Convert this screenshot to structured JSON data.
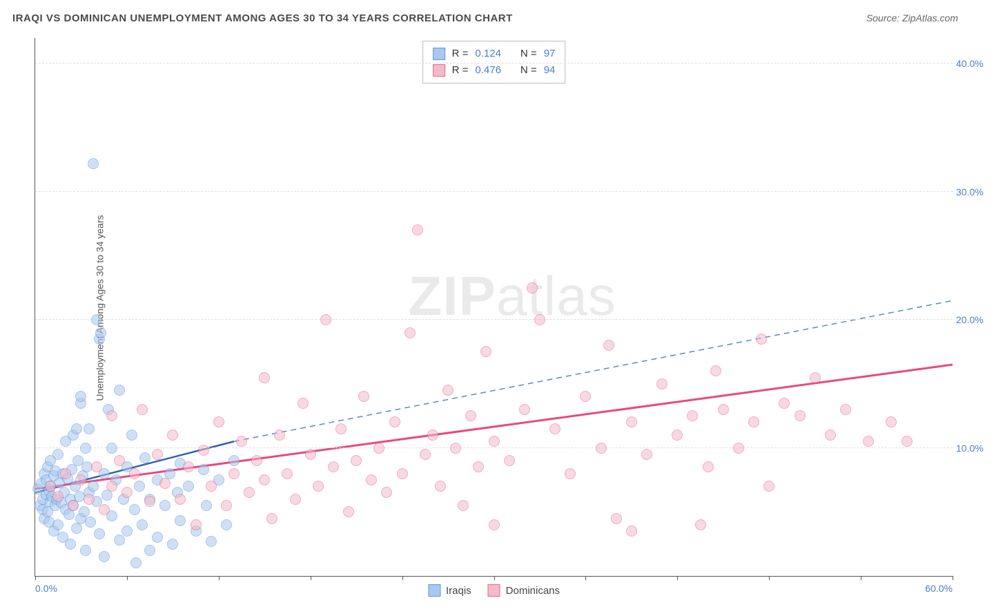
{
  "header": {
    "title": "IRAQI VS DOMINICAN UNEMPLOYMENT AMONG AGES 30 TO 34 YEARS CORRELATION CHART",
    "source_prefix": "Source: ",
    "source_name": "ZipAtlas.com"
  },
  "watermark": {
    "part1": "ZIP",
    "part2": "atlas"
  },
  "chart": {
    "type": "scatter",
    "y_axis_title": "Unemployment Among Ages 30 to 34 years",
    "background_color": "#ffffff",
    "grid_color": "#dddddd",
    "axis_color": "#555555",
    "tick_label_color": "#4a7bd0",
    "tick_fontsize": 14,
    "xlim": [
      0,
      60
    ],
    "ylim": [
      0,
      42
    ],
    "x_ticks": [
      0,
      6,
      12,
      18,
      24,
      30,
      36,
      42,
      48,
      54,
      60
    ],
    "x_tick_labels_shown": {
      "0": "0.0%",
      "60": "60.0%"
    },
    "y_gridlines": [
      10,
      20,
      30,
      40
    ],
    "y_tick_labels": {
      "10": "10.0%",
      "20": "20.0%",
      "30": "30.0%",
      "40": "40.0%"
    },
    "marker_radius": 8,
    "marker_opacity": 0.55,
    "series": [
      {
        "id": "iraqis",
        "label": "Iraqis",
        "color_fill": "#a9c8ef",
        "color_stroke": "#5f96d9",
        "R": "0.124",
        "N": "97",
        "trend": {
          "x1": 0,
          "y1": 6.5,
          "x2": 13,
          "y2": 10.5,
          "solid_stroke": "#2f5fb0",
          "dash_x2": 60,
          "dash_y2": 21.5,
          "dash_stroke": "#5a87c8",
          "stroke_width": 2.5,
          "dash_pattern": "8,6"
        },
        "points": [
          [
            0.2,
            6.8
          ],
          [
            0.3,
            5.5
          ],
          [
            0.4,
            7.2
          ],
          [
            0.5,
            6.0
          ],
          [
            0.5,
            5.2
          ],
          [
            0.6,
            8.0
          ],
          [
            0.6,
            4.5
          ],
          [
            0.7,
            7.5
          ],
          [
            0.7,
            6.3
          ],
          [
            0.8,
            5.0
          ],
          [
            0.8,
            8.5
          ],
          [
            0.9,
            6.7
          ],
          [
            0.9,
            4.2
          ],
          [
            1.0,
            7.0
          ],
          [
            1.0,
            5.8
          ],
          [
            1.0,
            9.0
          ],
          [
            1.1,
            6.2
          ],
          [
            1.2,
            3.5
          ],
          [
            1.2,
            7.8
          ],
          [
            1.3,
            5.5
          ],
          [
            1.3,
            8.2
          ],
          [
            1.4,
            6.0
          ],
          [
            1.5,
            4.0
          ],
          [
            1.5,
            9.5
          ],
          [
            1.6,
            7.3
          ],
          [
            1.7,
            5.7
          ],
          [
            1.8,
            3.0
          ],
          [
            1.8,
            8.0
          ],
          [
            1.9,
            6.5
          ],
          [
            2.0,
            5.2
          ],
          [
            2.0,
            10.5
          ],
          [
            2.1,
            7.6
          ],
          [
            2.2,
            4.8
          ],
          [
            2.3,
            6.0
          ],
          [
            2.3,
            2.5
          ],
          [
            2.4,
            8.3
          ],
          [
            2.5,
            5.5
          ],
          [
            2.5,
            11.0
          ],
          [
            2.6,
            7.0
          ],
          [
            2.7,
            3.7
          ],
          [
            2.8,
            9.0
          ],
          [
            2.9,
            6.2
          ],
          [
            3.0,
            4.5
          ],
          [
            3.0,
            13.5
          ],
          [
            3.0,
            14.0
          ],
          [
            3.1,
            7.8
          ],
          [
            3.2,
            5.0
          ],
          [
            3.3,
            2.0
          ],
          [
            3.4,
            8.5
          ],
          [
            3.5,
            6.5
          ],
          [
            3.5,
            11.5
          ],
          [
            3.6,
            4.2
          ],
          [
            3.8,
            7.0
          ],
          [
            3.8,
            32.2
          ],
          [
            4.0,
            5.8
          ],
          [
            4.0,
            20.0
          ],
          [
            4.2,
            3.3
          ],
          [
            4.2,
            18.5
          ],
          [
            4.3,
            19.0
          ],
          [
            4.5,
            8.0
          ],
          [
            4.5,
            1.5
          ],
          [
            4.7,
            6.3
          ],
          [
            4.8,
            13.0
          ],
          [
            5.0,
            4.7
          ],
          [
            5.0,
            10.0
          ],
          [
            5.3,
            7.5
          ],
          [
            5.5,
            2.8
          ],
          [
            5.5,
            14.5
          ],
          [
            5.8,
            6.0
          ],
          [
            6.0,
            8.5
          ],
          [
            6.0,
            3.5
          ],
          [
            6.3,
            11.0
          ],
          [
            6.5,
            5.2
          ],
          [
            6.6,
            1.0
          ],
          [
            6.8,
            7.0
          ],
          [
            7.0,
            4.0
          ],
          [
            7.2,
            9.2
          ],
          [
            7.5,
            6.0
          ],
          [
            7.5,
            2.0
          ],
          [
            8.0,
            7.5
          ],
          [
            8.0,
            3.0
          ],
          [
            8.5,
            5.5
          ],
          [
            8.8,
            8.0
          ],
          [
            9.0,
            2.5
          ],
          [
            9.3,
            6.5
          ],
          [
            9.5,
            4.3
          ],
          [
            9.5,
            8.8
          ],
          [
            10.0,
            7.0
          ],
          [
            10.5,
            3.5
          ],
          [
            11.0,
            8.3
          ],
          [
            11.2,
            5.5
          ],
          [
            11.5,
            2.7
          ],
          [
            12.0,
            7.5
          ],
          [
            12.5,
            4.0
          ],
          [
            13.0,
            9.0
          ],
          [
            2.7,
            11.5
          ],
          [
            3.3,
            10.0
          ]
        ]
      },
      {
        "id": "dominicans",
        "label": "Dominicans",
        "color_fill": "#f5b9ca",
        "color_stroke": "#e06a8e",
        "R": "0.476",
        "N": "94",
        "trend": {
          "x1": 0,
          "y1": 6.8,
          "x2": 60,
          "y2": 16.5,
          "solid_stroke": "#e84a7a",
          "stroke_width": 3
        },
        "points": [
          [
            1.0,
            7.0
          ],
          [
            1.5,
            6.2
          ],
          [
            2.0,
            8.0
          ],
          [
            2.5,
            5.5
          ],
          [
            3.0,
            7.5
          ],
          [
            3.5,
            6.0
          ],
          [
            4.0,
            8.5
          ],
          [
            4.5,
            5.2
          ],
          [
            5.0,
            7.0
          ],
          [
            5.0,
            12.5
          ],
          [
            5.5,
            9.0
          ],
          [
            6.0,
            6.5
          ],
          [
            6.5,
            8.0
          ],
          [
            7.0,
            13.0
          ],
          [
            7.5,
            5.8
          ],
          [
            8.0,
            9.5
          ],
          [
            8.5,
            7.2
          ],
          [
            9.0,
            11.0
          ],
          [
            9.5,
            6.0
          ],
          [
            10.0,
            8.5
          ],
          [
            10.5,
            4.0
          ],
          [
            11.0,
            9.8
          ],
          [
            11.5,
            7.0
          ],
          [
            12.0,
            12.0
          ],
          [
            12.5,
            5.5
          ],
          [
            13.0,
            8.0
          ],
          [
            13.5,
            10.5
          ],
          [
            14.0,
            6.5
          ],
          [
            14.5,
            9.0
          ],
          [
            15.0,
            7.5
          ],
          [
            15.0,
            15.5
          ],
          [
            15.5,
            4.5
          ],
          [
            16.0,
            11.0
          ],
          [
            16.5,
            8.0
          ],
          [
            17.0,
            6.0
          ],
          [
            17.5,
            13.5
          ],
          [
            18.0,
            9.5
          ],
          [
            18.5,
            7.0
          ],
          [
            19.0,
            20.0
          ],
          [
            19.5,
            8.5
          ],
          [
            20.0,
            11.5
          ],
          [
            20.5,
            5.0
          ],
          [
            21.0,
            9.0
          ],
          [
            21.5,
            14.0
          ],
          [
            22.0,
            7.5
          ],
          [
            22.5,
            10.0
          ],
          [
            23.0,
            6.5
          ],
          [
            23.5,
            12.0
          ],
          [
            24.0,
            8.0
          ],
          [
            24.5,
            19.0
          ],
          [
            25.0,
            27.0
          ],
          [
            25.5,
            9.5
          ],
          [
            26.0,
            11.0
          ],
          [
            26.5,
            7.0
          ],
          [
            27.0,
            14.5
          ],
          [
            27.5,
            10.0
          ],
          [
            28.0,
            5.5
          ],
          [
            28.5,
            12.5
          ],
          [
            29.0,
            8.5
          ],
          [
            29.5,
            17.5
          ],
          [
            30.0,
            10.5
          ],
          [
            31.0,
            9.0
          ],
          [
            32.0,
            13.0
          ],
          [
            32.5,
            22.5
          ],
          [
            33.0,
            20.0
          ],
          [
            34.0,
            11.5
          ],
          [
            35.0,
            8.0
          ],
          [
            36.0,
            14.0
          ],
          [
            37.0,
            10.0
          ],
          [
            37.5,
            18.0
          ],
          [
            38.0,
            4.5
          ],
          [
            39.0,
            12.0
          ],
          [
            40.0,
            9.5
          ],
          [
            41.0,
            15.0
          ],
          [
            42.0,
            11.0
          ],
          [
            43.0,
            12.5
          ],
          [
            44.0,
            8.5
          ],
          [
            44.5,
            16.0
          ],
          [
            45.0,
            13.0
          ],
          [
            46.0,
            10.0
          ],
          [
            47.0,
            12.0
          ],
          [
            47.5,
            18.5
          ],
          [
            48.0,
            7.0
          ],
          [
            49.0,
            13.5
          ],
          [
            50.0,
            12.5
          ],
          [
            51.0,
            15.5
          ],
          [
            52.0,
            11.0
          ],
          [
            53.0,
            13.0
          ],
          [
            54.5,
            10.5
          ],
          [
            56.0,
            12.0
          ],
          [
            57.0,
            10.5
          ],
          [
            39.0,
            3.5
          ],
          [
            30.0,
            4.0
          ],
          [
            43.5,
            4.0
          ]
        ]
      }
    ]
  },
  "legend_top": {
    "r_label": "R  =",
    "n_label": "N  ="
  }
}
